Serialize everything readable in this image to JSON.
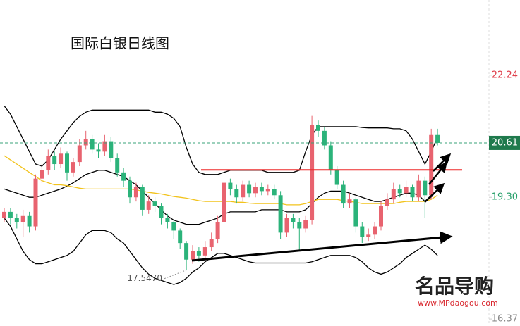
{
  "chart_data": {
    "type": "candlestick",
    "title": "国际白银日线图",
    "categories": [
      null,
      null,
      null,
      null,
      null,
      null,
      null,
      null,
      null,
      null,
      null,
      null,
      null,
      null,
      null,
      null,
      null,
      null,
      null,
      null,
      null,
      null,
      null,
      null,
      null,
      null,
      null,
      null,
      null,
      null,
      null,
      null,
      null,
      null,
      null,
      null,
      null,
      null,
      null,
      null,
      null,
      null,
      null,
      null,
      null,
      null,
      null,
      null,
      null,
      null,
      null,
      null,
      null,
      null,
      null,
      null,
      null,
      null,
      null,
      null,
      null,
      null,
      null,
      null,
      null,
      null,
      null,
      null,
      null,
      null
    ],
    "open": [
      18.8,
      18.95,
      18.8,
      18.7,
      18.85,
      18.6,
      19.75,
      19.95,
      20.3,
      20.1,
      20.35,
      19.9,
      20.15,
      20.55,
      20.7,
      20.45,
      20.4,
      20.65,
      20.25,
      19.9,
      19.7,
      19.3,
      19.55,
      19.0,
      19.2,
      19.1,
      18.8,
      18.7,
      18.5,
      18.2,
      17.8,
      18.0,
      17.9,
      18.1,
      18.3,
      18.7,
      19.65,
      19.5,
      19.3,
      19.6,
      19.4,
      19.55,
      19.45,
      19.5,
      19.35,
      18.45,
      18.8,
      18.7,
      18.55,
      18.75,
      21.05,
      20.9,
      20.55,
      19.95,
      19.6,
      19.15,
      19.25,
      18.6,
      18.35,
      18.4,
      18.6,
      19.1,
      19.25,
      19.5,
      19.4,
      19.55,
      19.3,
      19.7,
      19.35,
      20.8
    ],
    "high": [
      19.05,
      19.05,
      18.9,
      19.0,
      18.95,
      19.85,
      20.1,
      20.45,
      20.4,
      20.5,
      20.4,
      20.25,
      20.7,
      20.9,
      20.8,
      20.6,
      20.8,
      20.75,
      20.35,
      20.0,
      19.8,
      19.65,
      19.6,
      19.35,
      19.3,
      19.15,
      18.9,
      18.75,
      18.55,
      18.25,
      18.15,
      18.1,
      18.25,
      18.45,
      18.85,
      19.8,
      19.75,
      19.6,
      19.7,
      19.7,
      19.65,
      19.65,
      19.6,
      19.6,
      19.45,
      18.9,
      18.9,
      18.8,
      18.85,
      21.26,
      21.15,
      21.0,
      20.65,
      20.05,
      19.7,
      19.4,
      19.3,
      18.7,
      18.55,
      18.7,
      19.2,
      19.4,
      19.65,
      19.6,
      19.7,
      19.6,
      19.85,
      19.8,
      20.95,
      20.95
    ],
    "low": [
      18.7,
      18.65,
      18.55,
      18.35,
      18.45,
      18.5,
      19.65,
      19.85,
      19.95,
      20.0,
      19.7,
      19.8,
      20.05,
      20.45,
      20.35,
      20.25,
      20.3,
      20.15,
      19.8,
      19.55,
      19.15,
      19.2,
      18.85,
      18.9,
      18.95,
      18.65,
      18.55,
      18.3,
      18.05,
      17.547,
      17.7,
      17.75,
      17.8,
      18.0,
      18.2,
      18.6,
      19.35,
      19.15,
      19.2,
      19.3,
      19.3,
      19.35,
      19.35,
      19.25,
      18.3,
      18.35,
      18.55,
      18.0,
      18.45,
      18.65,
      20.75,
      20.45,
      19.85,
      19.5,
      19.05,
      19.05,
      18.45,
      18.2,
      18.25,
      18.3,
      18.5,
      19.0,
      19.15,
      19.3,
      19.3,
      19.2,
      19.2,
      18.8,
      19.25,
      20.55
    ],
    "close": [
      18.95,
      18.8,
      18.7,
      18.85,
      18.6,
      19.75,
      19.95,
      20.3,
      20.1,
      20.35,
      19.9,
      20.15,
      20.55,
      20.7,
      20.45,
      20.4,
      20.65,
      20.25,
      19.9,
      19.7,
      19.3,
      19.55,
      19.0,
      19.2,
      19.1,
      18.8,
      18.7,
      18.5,
      18.2,
      17.8,
      18.0,
      17.9,
      18.1,
      18.3,
      18.7,
      19.65,
      19.5,
      19.3,
      19.6,
      19.4,
      19.55,
      19.45,
      19.5,
      19.35,
      18.45,
      18.8,
      18.7,
      18.55,
      18.75,
      21.05,
      20.9,
      20.55,
      19.95,
      19.6,
      19.15,
      19.25,
      18.6,
      18.35,
      18.4,
      18.6,
      19.1,
      19.25,
      19.5,
      19.4,
      19.55,
      19.3,
      19.7,
      19.35,
      20.8,
      20.61
    ],
    "up_color": "#e8636f",
    "down_color": "#2bb37a",
    "overlays": [
      {
        "color": "#000000",
        "values": [
          21.5,
          21.3,
          21.0,
          20.7,
          20.4,
          20.1,
          20.05,
          20.2,
          20.45,
          20.7,
          20.9,
          21.1,
          21.25,
          21.35,
          21.4,
          21.4,
          21.4,
          21.4,
          21.4,
          21.4,
          21.4,
          21.4,
          21.4,
          21.4,
          21.35,
          21.35,
          21.3,
          21.2,
          21.0,
          20.5,
          20.1,
          19.9,
          19.85,
          19.85,
          19.85,
          19.9,
          19.95,
          19.95,
          19.95,
          19.95,
          19.95,
          19.95,
          19.9,
          19.9,
          19.9,
          19.9,
          19.9,
          19.95,
          20.4,
          20.8,
          21.0,
          21.0,
          21.0,
          21.0,
          21.0,
          21.0,
          21.0,
          20.98,
          20.97,
          20.97,
          20.97,
          20.97,
          20.95,
          20.95,
          20.9,
          20.7,
          20.4,
          20.1,
          20.4,
          20.75
        ]
      },
      {
        "color": "#000000",
        "values": [
          19.5,
          19.45,
          19.4,
          19.35,
          19.3,
          19.3,
          19.35,
          19.4,
          19.45,
          19.5,
          19.57,
          19.65,
          19.75,
          19.85,
          19.9,
          19.95,
          19.95,
          19.9,
          19.85,
          19.8,
          19.7,
          19.6,
          19.45,
          19.3,
          19.15,
          19.0,
          18.85,
          18.75,
          18.7,
          18.65,
          18.65,
          18.65,
          18.7,
          18.75,
          18.8,
          18.9,
          18.95,
          18.95,
          18.95,
          18.95,
          18.95,
          19.0,
          19.0,
          19.0,
          19.0,
          18.95,
          18.95,
          18.95,
          19.0,
          19.15,
          19.3,
          19.4,
          19.45,
          19.45,
          19.45,
          19.4,
          19.35,
          19.3,
          19.25,
          19.2,
          19.2,
          19.25,
          19.3,
          19.35,
          19.4,
          19.4,
          19.35,
          19.2,
          19.3,
          19.5
        ]
      },
      {
        "color": "#000000",
        "values": [
          18.8,
          18.6,
          18.3,
          18.0,
          17.8,
          17.7,
          17.7,
          17.75,
          17.8,
          17.85,
          17.9,
          18.0,
          18.2,
          18.4,
          18.5,
          18.5,
          18.5,
          18.45,
          18.3,
          18.2,
          18.0,
          17.8,
          17.6,
          17.45,
          17.35,
          17.3,
          17.25,
          17.2,
          17.25,
          17.35,
          17.5,
          17.6,
          17.75,
          17.85,
          17.95,
          17.95,
          17.9,
          17.85,
          17.8,
          17.75,
          17.72,
          17.72,
          17.72,
          17.72,
          17.72,
          17.72,
          17.72,
          17.72,
          17.72,
          17.75,
          17.8,
          17.85,
          17.9,
          17.9,
          17.9,
          17.9,
          17.85,
          17.75,
          17.6,
          17.5,
          17.45,
          17.5,
          17.6,
          17.7,
          17.85,
          17.95,
          18.05,
          18.15,
          18.05,
          17.9
        ]
      },
      {
        "color": "#f2c31c",
        "values": [
          20.3,
          20.2,
          20.1,
          20.0,
          19.9,
          19.8,
          19.7,
          19.65,
          19.6,
          19.6,
          19.58,
          19.55,
          19.52,
          19.5,
          19.5,
          19.5,
          19.5,
          19.5,
          19.5,
          19.5,
          19.5,
          19.48,
          19.45,
          19.42,
          19.4,
          19.38,
          19.35,
          19.32,
          19.3,
          19.28,
          19.25,
          19.22,
          19.2,
          19.2,
          19.2,
          19.2,
          19.2,
          19.18,
          19.18,
          19.16,
          19.15,
          19.15,
          19.15,
          19.15,
          19.15,
          19.12,
          19.12,
          19.12,
          19.15,
          19.2,
          19.25,
          19.25,
          19.25,
          19.25,
          19.22,
          19.2,
          19.18,
          19.15,
          19.15,
          19.15,
          19.15,
          19.15,
          19.15,
          19.18,
          19.2,
          19.2,
          19.2,
          19.2,
          19.25,
          19.35
        ]
      }
    ],
    "ylim": [
      16.27,
      24.05
    ],
    "yticks": [
      22.24,
      {
        "value": 19.3,
        "label": "19.30"
      },
      16.37
    ],
    "last_price": 20.61,
    "last_price_color": "#1f7a4d",
    "resistance": 19.96,
    "resistance_color": "#ee2a2a",
    "low_annotation": {
      "value": 17.547,
      "label": "17.5470"
    }
  },
  "watermark": {
    "logo": "名品导购",
    "url": "www.MPdaogou.com"
  }
}
